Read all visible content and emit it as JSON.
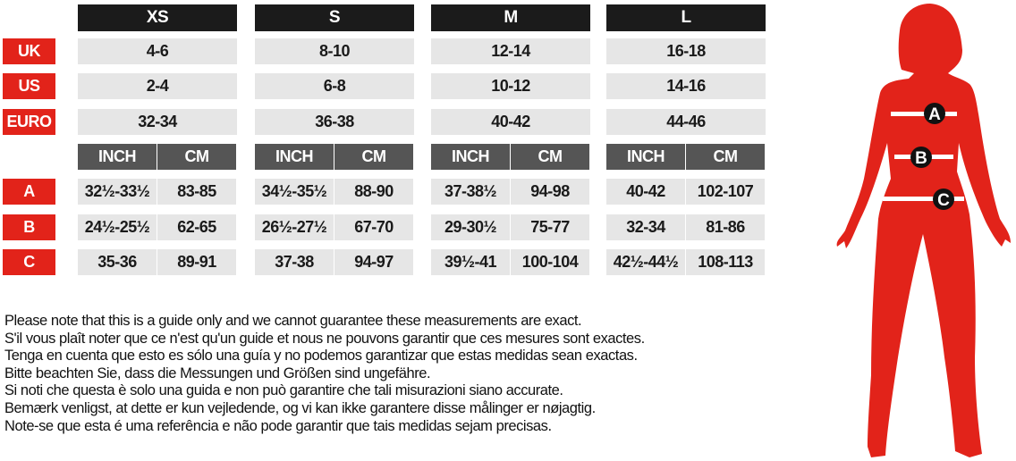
{
  "sizes": [
    "XS",
    "S",
    "M",
    "L"
  ],
  "units": [
    "INCH",
    "CM"
  ],
  "region_rows": [
    {
      "label": "UK",
      "values": [
        "4-6",
        "8-10",
        "12-14",
        "16-18"
      ]
    },
    {
      "label": "US",
      "values": [
        "2-4",
        "6-8",
        "10-12",
        "14-16"
      ]
    },
    {
      "label": "EURO",
      "values": [
        "32-34",
        "36-38",
        "40-42",
        "44-46"
      ]
    }
  ],
  "measurement_rows": [
    {
      "label": "A",
      "values": [
        [
          "32½-33½",
          "83-85"
        ],
        [
          "34½-35½",
          "88-90"
        ],
        [
          "37-38½",
          "94-98"
        ],
        [
          "40-42",
          "102-107"
        ]
      ]
    },
    {
      "label": "B",
      "values": [
        [
          "24½-25½",
          "62-65"
        ],
        [
          "26½-27½",
          "67-70"
        ],
        [
          "29-30½",
          "75-77"
        ],
        [
          "32-34",
          "81-86"
        ]
      ]
    },
    {
      "label": "C",
      "values": [
        [
          "35-36",
          "89-91"
        ],
        [
          "37-38",
          "94-97"
        ],
        [
          "39½-41",
          "100-104"
        ],
        [
          "42½-44½",
          "108-113"
        ]
      ]
    }
  ],
  "notes": [
    "Please note that this is a guide only and we cannot guarantee these measurements are exact.",
    "S'il vous plaît noter que ce n'est qu'un guide et nous ne pouvons garantir que ces mesures sont exactes.",
    "Tenga en cuenta que esto es sólo una guía y no podemos garantizar que estas medidas sean exactas.",
    "Bitte beachten Sie, dass die Messungen und Größen sind ungefähre.",
    "Si noti che questa è solo una guida e non può garantire che tali misurazioni siano accurate.",
    "Bemærk venligst, at dette er kun vejledende, og vi kan ikke garantere disse målinger er nøjagtig.",
    "Note-se que esta é uma referência e não pode garantir que tais medidas sejam precisas."
  ],
  "figure": {
    "markers": [
      "A",
      "B",
      "C"
    ],
    "icon": "female-silhouette-icon"
  },
  "colors": {
    "accent_red": "#e2231a",
    "header_black": "#1b1b1b",
    "subheader_gray": "#555555",
    "cell_gray": "#e6e6e6"
  }
}
